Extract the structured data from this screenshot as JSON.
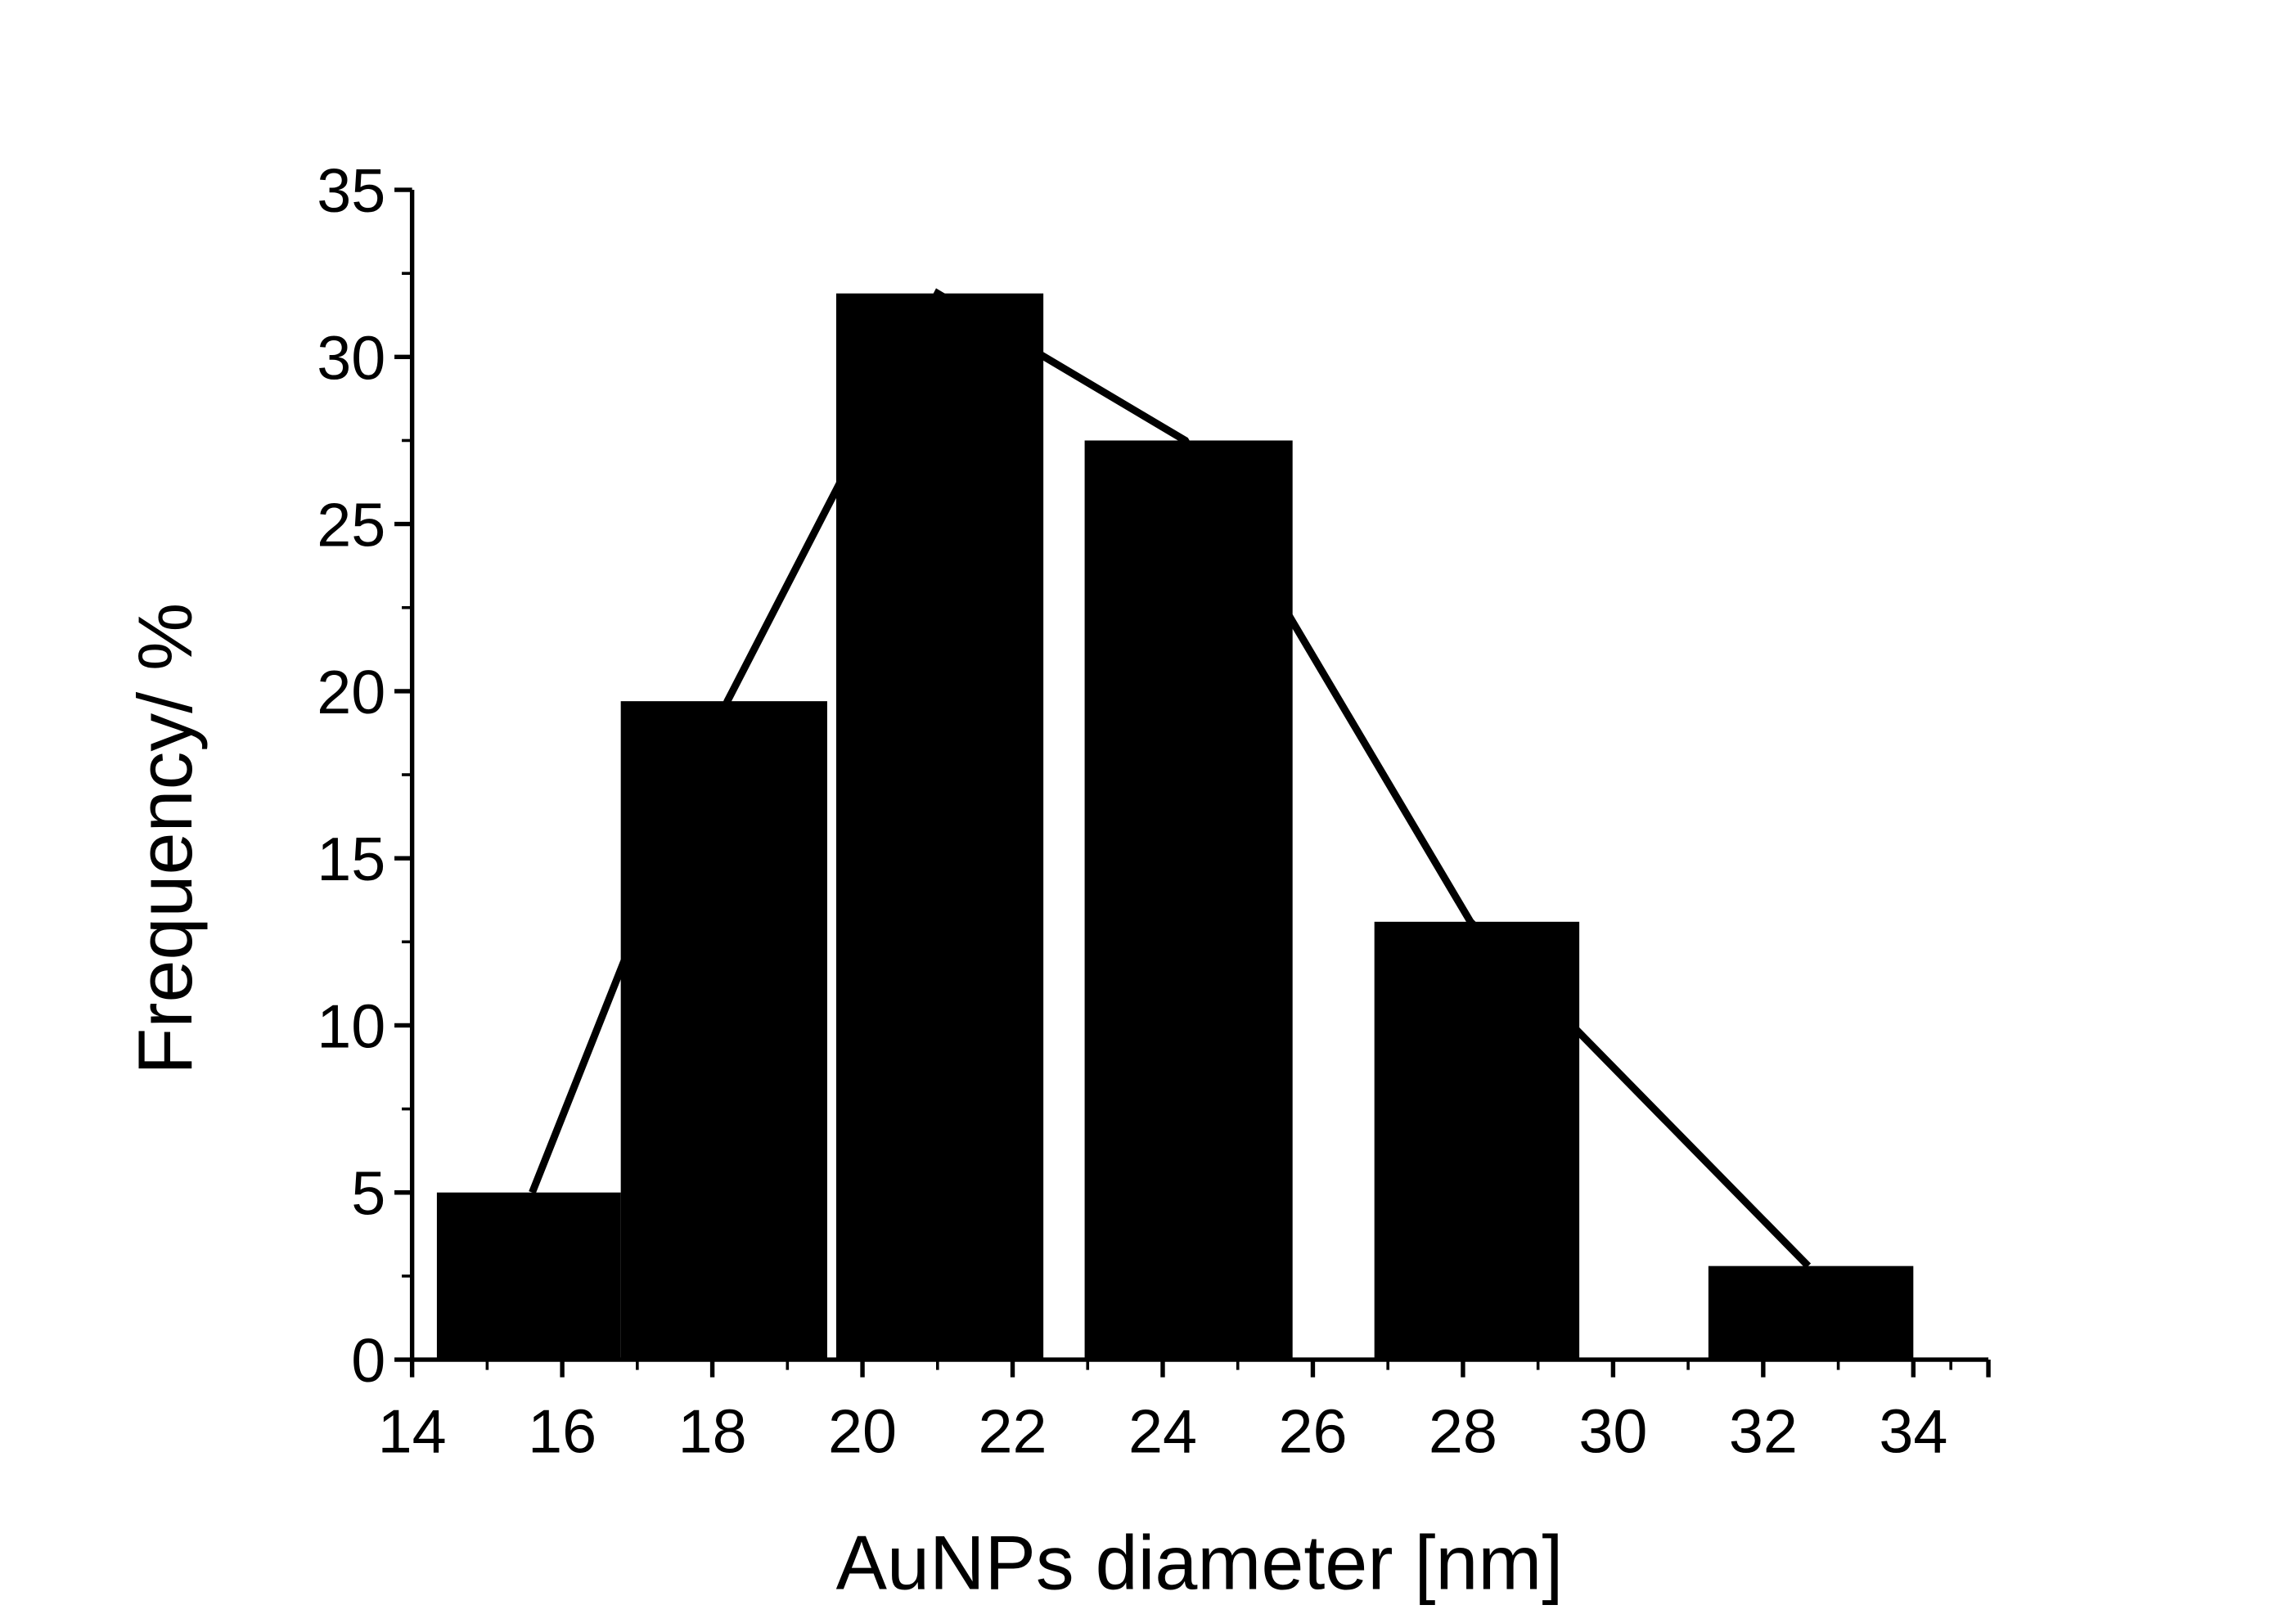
{
  "chart_data": {
    "type": "bar",
    "x_label": "AuNPs diameter [nm]",
    "y_label": "Frequency/ %",
    "bars": {
      "x_start": [
        14.33,
        16.78,
        19.65,
        22.96,
        26.82,
        31.27
      ],
      "x_end": [
        16.78,
        19.53,
        22.41,
        25.73,
        29.55,
        34.0
      ],
      "values": [
        5,
        19.7,
        31.9,
        27.5,
        13.1,
        2.8
      ],
      "color": "#000000"
    },
    "line": {
      "x": [
        15.6,
        18.2,
        21.0,
        24.3,
        28.1,
        32.6
      ],
      "values": [
        5,
        19.7,
        31.9,
        27.5,
        13.1,
        2.8
      ],
      "color": "#000000"
    },
    "xlim": [
      14,
      35
    ],
    "xticks": [
      14,
      16,
      18,
      20,
      22,
      24,
      26,
      28,
      30,
      32,
      34
    ],
    "ylim": [
      0,
      35
    ],
    "yticks": [
      0,
      5,
      10,
      15,
      20,
      25,
      30,
      35
    ]
  }
}
